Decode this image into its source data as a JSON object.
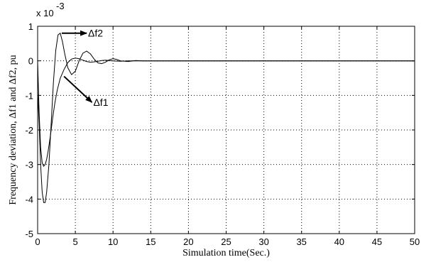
{
  "chart_data": {
    "type": "line",
    "title": "",
    "xlabel": "Simulation time(Sec.)",
    "ylabel": "Frequency deviation, Δf1 and Δf2, pu",
    "xlim": [
      0,
      50
    ],
    "ylim": [
      -5,
      1
    ],
    "y_multiplier_label": "x 10",
    "y_multiplier_exponent": "-3",
    "grid": true,
    "xticks": [
      "0",
      "5",
      "10",
      "15",
      "20",
      "25",
      "30",
      "35",
      "40",
      "45",
      "50"
    ],
    "yticks": [
      "1",
      "0",
      "-1",
      "-2",
      "-3",
      "-4",
      "-5"
    ],
    "series": [
      {
        "name": "Δf1",
        "x": [
          0,
          0.2,
          0.4,
          0.6,
          0.8,
          1.0,
          1.2,
          1.4,
          1.7,
          2.0,
          2.3,
          2.6,
          3.0,
          3.5,
          4.0,
          4.5,
          5.0,
          5.5,
          6.0,
          6.5,
          7.0,
          7.5,
          8.0,
          8.5,
          9.0,
          10.0,
          11.0,
          12.0,
          13.0,
          14.0,
          50
        ],
        "y": [
          0,
          -1.5,
          -2.5,
          -2.95,
          -3.05,
          -3.0,
          -2.85,
          -2.6,
          -2.15,
          -1.65,
          -1.2,
          -0.85,
          -0.5,
          -0.25,
          -0.05,
          0.05,
          0.08,
          0.06,
          0.02,
          -0.02,
          -0.04,
          -0.03,
          -0.01,
          0.01,
          0.02,
          0.0,
          -0.01,
          0.0,
          0.0,
          0.0,
          0.0
        ]
      },
      {
        "name": "Δf2",
        "x": [
          0,
          0.2,
          0.4,
          0.6,
          0.8,
          1.0,
          1.2,
          1.5,
          1.8,
          2.1,
          2.4,
          2.7,
          3.0,
          3.3,
          3.6,
          4.0,
          4.5,
          5.0,
          5.5,
          6.0,
          6.5,
          7.0,
          7.5,
          8.0,
          8.5,
          9.0,
          9.5,
          10.0,
          10.5,
          11.0,
          12.0,
          13.0,
          14.0,
          50
        ],
        "y": [
          -0.9,
          -1.8,
          -3.0,
          -3.8,
          -4.1,
          -4.1,
          -3.8,
          -3.0,
          -1.8,
          -0.6,
          0.3,
          0.75,
          0.8,
          0.55,
          0.2,
          -0.2,
          -0.4,
          -0.3,
          0.0,
          0.22,
          0.28,
          0.2,
          0.05,
          -0.06,
          -0.08,
          -0.04,
          0.03,
          0.06,
          0.04,
          0.0,
          -0.02,
          0.01,
          0.0,
          0.0
        ]
      }
    ],
    "annotations": [
      {
        "text": "Δf2",
        "arrow_from": [
          3.2,
          0.8
        ],
        "arrow_to": [
          6.5,
          0.8
        ]
      },
      {
        "text": "Δf1",
        "arrow_from": [
          3.5,
          -0.45
        ],
        "arrow_to": [
          7.2,
          -1.2
        ]
      }
    ]
  }
}
